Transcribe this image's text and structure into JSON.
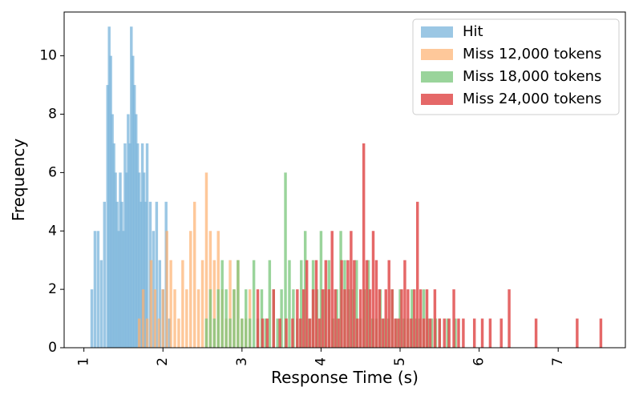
{
  "chart_data": {
    "type": "histogram",
    "title": "",
    "xlabel": "Response Time (s)",
    "ylabel": "Frequency",
    "xlim": [
      0.75,
      7.85
    ],
    "ylim": [
      0,
      11.5
    ],
    "xticks": [
      1,
      2,
      3,
      4,
      5,
      6,
      7
    ],
    "xtick_labels": [
      "1",
      "2",
      "3",
      "4",
      "5",
      "6",
      "7"
    ],
    "yticks": [
      0,
      2,
      4,
      6,
      8,
      10
    ],
    "ytick_labels": [
      "0",
      "2",
      "4",
      "6",
      "8",
      "10"
    ],
    "bar_width": 0.035,
    "legend_position": "top-right",
    "series": [
      {
        "name": "Hit",
        "color": "#7ab4db",
        "opacity": 0.75,
        "x": [
          1.1,
          1.14,
          1.18,
          1.22,
          1.26,
          1.3,
          1.32,
          1.34,
          1.36,
          1.38,
          1.4,
          1.42,
          1.44,
          1.46,
          1.48,
          1.5,
          1.52,
          1.54,
          1.56,
          1.58,
          1.6,
          1.62,
          1.64,
          1.66,
          1.68,
          1.7,
          1.72,
          1.74,
          1.76,
          1.78,
          1.8,
          1.84,
          1.88,
          1.92,
          1.96,
          2.0,
          2.04,
          2.08
        ],
        "values": [
          2,
          4,
          4,
          3,
          5,
          9,
          11,
          10,
          8,
          7,
          6,
          5,
          4,
          6,
          5,
          4,
          7,
          6,
          8,
          7,
          11,
          10,
          9,
          8,
          7,
          6,
          5,
          7,
          6,
          5,
          7,
          5,
          4,
          5,
          3,
          2,
          5,
          1
        ]
      },
      {
        "name": "Miss 12,000 tokens",
        "color": "#fdb16f",
        "opacity": 0.7,
        "x": [
          1.7,
          1.75,
          1.8,
          1.85,
          1.9,
          1.95,
          2.0,
          2.05,
          2.1,
          2.15,
          2.2,
          2.25,
          2.3,
          2.35,
          2.4,
          2.45,
          2.5,
          2.55,
          2.6,
          2.65,
          2.7,
          2.75,
          2.8,
          2.85,
          2.9,
          2.95,
          3.0,
          3.05,
          3.1
        ],
        "values": [
          1,
          2,
          1,
          3,
          2,
          1,
          2,
          4,
          3,
          2,
          1,
          3,
          2,
          4,
          5,
          2,
          3,
          6,
          4,
          3,
          4,
          2,
          1,
          3,
          2,
          3,
          1,
          1,
          2
        ]
      },
      {
        "name": "Miss 18,000 tokens",
        "color": "#78c679",
        "opacity": 0.75,
        "x": [
          2.55,
          2.6,
          2.65,
          2.7,
          2.75,
          2.8,
          2.85,
          2.9,
          2.95,
          3.0,
          3.05,
          3.1,
          3.15,
          3.2,
          3.25,
          3.3,
          3.35,
          3.4,
          3.45,
          3.5,
          3.55,
          3.6,
          3.65,
          3.7,
          3.75,
          3.8,
          3.85,
          3.9,
          3.95,
          4.0,
          4.05,
          4.1,
          4.15,
          4.2,
          4.25,
          4.3,
          4.35,
          4.4,
          4.45,
          4.5,
          4.55,
          4.6,
          4.65,
          4.7,
          4.75,
          4.8,
          4.85,
          4.9,
          4.95,
          5.0,
          5.05,
          5.1,
          5.15,
          5.2,
          5.25,
          5.3,
          5.35,
          5.4,
          5.45,
          5.5,
          5.6,
          5.7
        ],
        "values": [
          1,
          2,
          1,
          2,
          3,
          2,
          1,
          2,
          3,
          1,
          2,
          1,
          3,
          1,
          2,
          1,
          3,
          2,
          1,
          2,
          6,
          3,
          2,
          1,
          3,
          4,
          1,
          3,
          2,
          4,
          2,
          3,
          1,
          2,
          4,
          3,
          2,
          2,
          3,
          1,
          2,
          3,
          1,
          1,
          2,
          1,
          1,
          2,
          1,
          2,
          1,
          1,
          2,
          1,
          1,
          2,
          1,
          1,
          1,
          1,
          1,
          1
        ]
      },
      {
        "name": "Miss 24,000 tokens",
        "color": "#e14d4d",
        "opacity": 0.85,
        "x": [
          3.2,
          3.26,
          3.32,
          3.4,
          3.48,
          3.56,
          3.64,
          3.7,
          3.74,
          3.78,
          3.82,
          3.86,
          3.9,
          3.94,
          3.98,
          4.02,
          4.06,
          4.1,
          4.14,
          4.18,
          4.22,
          4.26,
          4.3,
          4.34,
          4.38,
          4.42,
          4.46,
          4.5,
          4.54,
          4.58,
          4.62,
          4.66,
          4.7,
          4.74,
          4.78,
          4.82,
          4.86,
          4.9,
          4.94,
          4.98,
          5.02,
          5.06,
          5.1,
          5.14,
          5.18,
          5.22,
          5.26,
          5.3,
          5.34,
          5.38,
          5.44,
          5.5,
          5.56,
          5.62,
          5.68,
          5.74,
          5.8,
          5.94,
          6.04,
          6.14,
          6.28,
          6.38,
          6.72,
          7.24,
          7.54
        ],
        "values": [
          2,
          1,
          1,
          2,
          1,
          1,
          1,
          2,
          1,
          2,
          3,
          1,
          2,
          3,
          1,
          2,
          3,
          2,
          4,
          2,
          1,
          3,
          2,
          3,
          4,
          3,
          1,
          2,
          7,
          3,
          2,
          4,
          3,
          2,
          1,
          2,
          3,
          2,
          1,
          1,
          2,
          3,
          2,
          1,
          2,
          5,
          2,
          1,
          2,
          1,
          2,
          1,
          1,
          1,
          2,
          1,
          1,
          1,
          1,
          1,
          1,
          2,
          1,
          1,
          1
        ]
      }
    ]
  }
}
